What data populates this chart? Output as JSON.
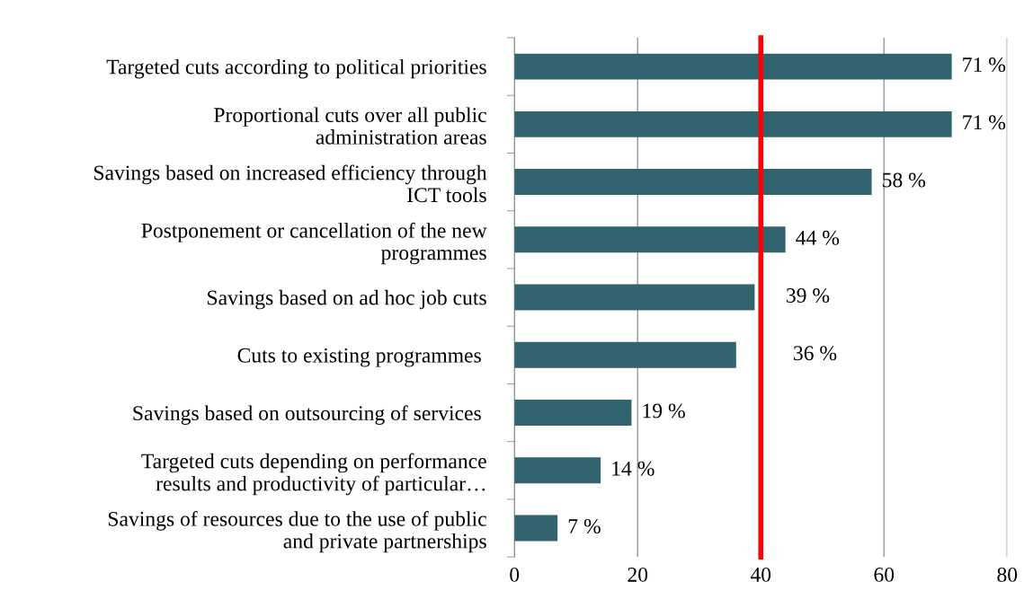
{
  "chart_data": {
    "type": "bar",
    "orientation": "horizontal",
    "categories": [
      "Targeted cuts according to political priorities",
      "Proportional cuts over all public\nadministration areas",
      "Savings based on increased efficiency through\nICT tools",
      "Postponement or cancellation of the new\nprogrammes",
      "Savings based on ad hoc job cuts",
      "Cuts to existing programmes ",
      "Savings based on outsourcing of services ",
      "Targeted cuts depending on performance\nresults and productivity of particular…",
      "Savings of resources due to the use of public\nand private partnerships"
    ],
    "values": [
      71,
      71,
      58,
      44,
      39,
      36,
      19,
      14,
      7
    ],
    "value_labels": [
      "71 %",
      "71 %",
      "58 %",
      "44 %",
      "39 %",
      "36 %",
      "19 %",
      "14 %",
      "7 %"
    ],
    "color": "#31646f",
    "xlim": [
      0,
      80
    ],
    "xticks": [
      0,
      20,
      40,
      60,
      80
    ],
    "grid": "x",
    "ref_lines": [
      {
        "axis": "x",
        "value": 40,
        "color": "#ff0000",
        "line_style": "solid"
      }
    ]
  }
}
